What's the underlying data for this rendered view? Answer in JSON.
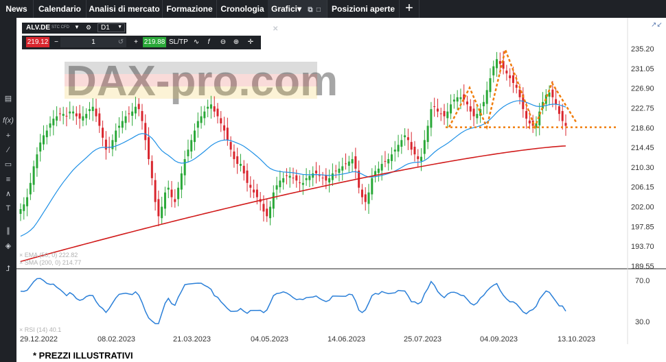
{
  "tabs": [
    {
      "label": "News"
    },
    {
      "label": "Calendario"
    },
    {
      "label": "Analisi di mercato"
    },
    {
      "label": "Formazione"
    },
    {
      "label": "Cronologia"
    },
    {
      "label": "Grafici▾"
    },
    {
      "label": "Posizioni aperte"
    }
  ],
  "instrument": {
    "symbol": "ALV.DE",
    "type": "STC CFD",
    "timeframe": "D1"
  },
  "trade": {
    "sell_price": "219.12",
    "quantity": "1",
    "buy_price": "219.88",
    "sltp_label": "SL/TP"
  },
  "watermark": "DAX-pro.com",
  "legend": {
    "ema": "× EMA (50, 0) 222.82",
    "sma": "× SMA (200, 0) 214.77",
    "rsi": "× RSI (14) 40.1"
  },
  "footnote": "* PREZZI ILLUSTRATIVI",
  "colors": {
    "up": "#2aa838",
    "down": "#d9262e",
    "ema": "#1e90e6",
    "sma": "#d11b1b",
    "pattern": "#f07d0c",
    "rsi": "#2a7fd8"
  },
  "chart_data": {
    "type": "candlestick",
    "price_axis": {
      "ticks": [
        235.2,
        231.05,
        226.9,
        222.75,
        218.6,
        214.45,
        210.3,
        206.15,
        202.0,
        197.85,
        193.7,
        189.55
      ],
      "tick_labels": [
        "235.20",
        "231.05",
        "226.90",
        "222.75",
        "218.60",
        "214.45",
        "210.30",
        "206.15",
        "202.00",
        "197.85",
        "193.70",
        "189.55"
      ],
      "range": [
        189.55,
        235.2
      ]
    },
    "rsi_axis": {
      "ticks": [
        70.0,
        30.0
      ],
      "tick_labels": [
        "70.0",
        "30.0"
      ],
      "range": [
        20,
        80
      ]
    },
    "date_labels": [
      "29.12.2022",
      "08.02.2023",
      "21.03.2023",
      "04.05.2023",
      "14.06.2023",
      "25.07.2023",
      "04.09.2023",
      "13.10.2023"
    ],
    "close_series": [
      201.5,
      202.5,
      204,
      207,
      210.5,
      213,
      215.5,
      217,
      218,
      219.5,
      220.5,
      221,
      221.5,
      221.5,
      221,
      222,
      222,
      221,
      220.5,
      221,
      221.5,
      222.5,
      223,
      221,
      219,
      216.5,
      214,
      214.5,
      216,
      218,
      219,
      220,
      221,
      221.5,
      222,
      223,
      222.5,
      220,
      216,
      212,
      208,
      203,
      200,
      202,
      205,
      206,
      204,
      203,
      206,
      209,
      212,
      214,
      216,
      218,
      220,
      221,
      222,
      223,
      223.5,
      222,
      221,
      219.5,
      218,
      216,
      214,
      212,
      211,
      211,
      209,
      207,
      206,
      205,
      204,
      203,
      201,
      200,
      202,
      205,
      206.5,
      207.5,
      208,
      208.5,
      208.5,
      208,
      207.5,
      207,
      207,
      208,
      208.5,
      209,
      209,
      208.5,
      208,
      207.5,
      208,
      209,
      209.5,
      210,
      210.5,
      211,
      211.5,
      212,
      210,
      206,
      204,
      203,
      205,
      208,
      209.5,
      210,
      211,
      211.5,
      212,
      213,
      214,
      215,
      216,
      217,
      216,
      214,
      213,
      212,
      212.5,
      216,
      219,
      222.5,
      223,
      222,
      221.5,
      221,
      222,
      223.5,
      224.5,
      225,
      225,
      224.5,
      223.5,
      222,
      221,
      221.5,
      222.5,
      224,
      226.5,
      229,
      231.5,
      233,
      232,
      231,
      230,
      229,
      228,
      227,
      225,
      222.5,
      220.5,
      219.5,
      219,
      219.5,
      222,
      224,
      225.5,
      226,
      225,
      223.5,
      221.5,
      220,
      219
    ],
    "ema": {
      "name": "EMA (50, 0)",
      "last": 222.82
    },
    "sma": {
      "name": "SMA (200, 0)",
      "last": 214.77
    },
    "rsi": {
      "name": "RSI (14)",
      "last": 40.1
    },
    "neckline": 218.7
  }
}
